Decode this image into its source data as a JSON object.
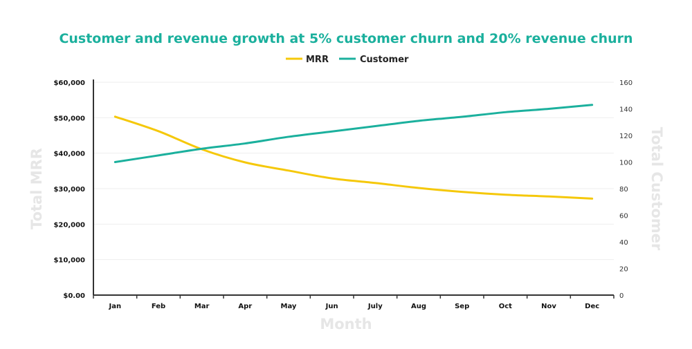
{
  "chart_data": {
    "type": "line",
    "title": "Customer and revenue growth at 5% customer churn and 20% revenue churn",
    "xlabel": "Month",
    "ylabel": "Total MRR",
    "y2label": "Total Customer",
    "categories": [
      "Jan",
      "Feb",
      "Mar",
      "Apr",
      "May",
      "Jun",
      "July",
      "Aug",
      "Sep",
      "Oct",
      "Nov",
      "Dec"
    ],
    "ylim": [
      0,
      60000
    ],
    "y2lim": [
      0,
      160
    ],
    "yticks": [
      "$0.00",
      "$10,000",
      "$20,000",
      "$30,000",
      "$40,000",
      "$50,000",
      "$60,000"
    ],
    "y2ticks": [
      "0",
      "20",
      "40",
      "60",
      "80",
      "100",
      "120",
      "140",
      "160"
    ],
    "grid": true,
    "legend_placement": "top-center",
    "series": [
      {
        "name": "MRR",
        "axis": "left",
        "color": "#f5c80a",
        "values": [
          50300,
          46200,
          41100,
          37400,
          35100,
          32900,
          31600,
          30200,
          29100,
          28300,
          27800,
          27200
        ]
      },
      {
        "name": "Customer",
        "axis": "right",
        "color": "#1bb09d",
        "values": [
          100,
          105,
          110,
          114,
          119,
          123,
          127,
          131,
          134,
          137.5,
          140,
          143
        ]
      }
    ],
    "colors": {
      "title": "#1bb09d",
      "axis_title": "#e6e6e6",
      "axis": "#333333",
      "grid": "#eeeeee"
    }
  }
}
